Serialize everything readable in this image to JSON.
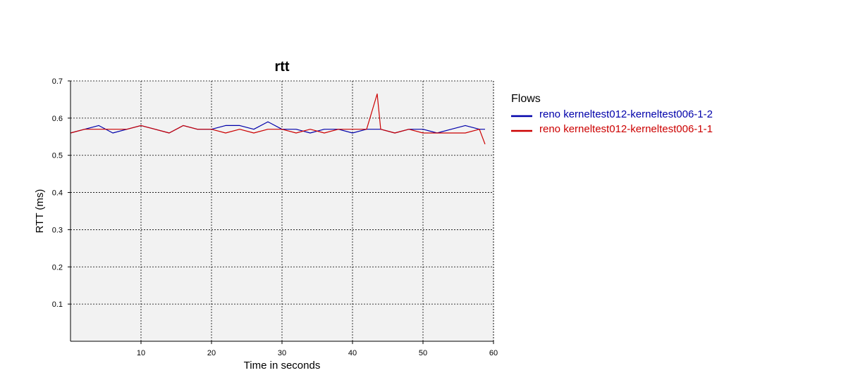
{
  "chart_data": {
    "type": "line",
    "title": "rtt",
    "xlabel": "Time in seconds",
    "ylabel": "RTT (ms)",
    "xlim": [
      0,
      60
    ],
    "ylim": [
      0,
      0.7
    ],
    "x_ticks": [
      "10",
      "20",
      "30",
      "40",
      "50",
      "60"
    ],
    "y_ticks": [
      "0.1",
      "0.2",
      "0.3",
      "0.4",
      "0.5",
      "0.6",
      "0.7"
    ],
    "grid": true,
    "legend": {
      "title": "Flows",
      "placement": "right"
    },
    "series": [
      {
        "name": "reno kerneltest012-kerneltest006-1-2",
        "color": "#0000aa",
        "x": [
          0,
          2,
          4,
          6,
          8,
          10,
          12,
          14,
          16,
          18,
          20,
          22,
          24,
          26,
          28,
          30,
          32,
          34,
          36,
          38,
          40,
          42,
          44,
          46,
          48,
          50,
          52,
          54,
          56,
          58,
          58.8
        ],
        "y": [
          0.56,
          0.57,
          0.58,
          0.56,
          0.57,
          0.58,
          0.57,
          0.56,
          0.58,
          0.57,
          0.57,
          0.58,
          0.58,
          0.57,
          0.59,
          0.57,
          0.57,
          0.56,
          0.57,
          0.57,
          0.56,
          0.57,
          0.57,
          0.56,
          0.57,
          0.57,
          0.56,
          0.57,
          0.58,
          0.57,
          0.57
        ]
      },
      {
        "name": "reno kerneltest012-kerneltest006-1-1",
        "color": "#cc0000",
        "x": [
          0,
          2,
          4,
          6,
          8,
          10,
          12,
          14,
          16,
          18,
          20,
          22,
          24,
          26,
          28,
          30,
          32,
          34,
          36,
          38,
          40,
          42,
          43.5,
          44,
          46,
          48,
          50,
          52,
          54,
          56,
          58,
          58.8
        ],
        "y": [
          0.56,
          0.57,
          0.57,
          0.57,
          0.57,
          0.58,
          0.57,
          0.56,
          0.58,
          0.57,
          0.57,
          0.56,
          0.57,
          0.56,
          0.57,
          0.57,
          0.56,
          0.57,
          0.56,
          0.57,
          0.57,
          0.57,
          0.665,
          0.57,
          0.56,
          0.57,
          0.56,
          0.56,
          0.56,
          0.56,
          0.57,
          0.53
        ]
      }
    ]
  }
}
